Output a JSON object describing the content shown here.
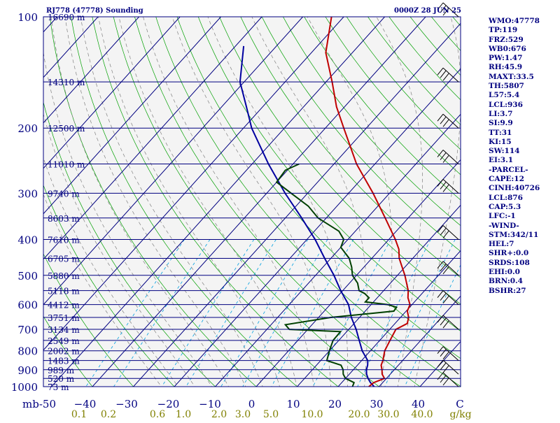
{
  "header": {
    "title": "RJ778 (47778) Sounding",
    "time": "0000Z 28 JUN 25"
  },
  "indices": [
    "WMO:47778",
    "TP:119",
    "FRZ:529",
    "WB0:676",
    "PW:1.47",
    "RH:45.9",
    "MAXT:33.5",
    "TH:5807",
    "L57:5.4",
    "LCL:936",
    "LI:3.7",
    "SI:9.9",
    "TT:31",
    "KI:15",
    "SW:114",
    "EI:3.1",
    "-PARCEL-",
    "CAPE:12",
    "CINH:40726",
    "LCL:876",
    "CAP:5.3",
    "LFC:-1",
    "-WIND-",
    "STM:342/11",
    "HEL:7",
    "SHR+:0.0",
    "SRDS:108",
    "EHI:0.0",
    "BRN:0.4",
    "BSHR:27"
  ],
  "colors": {
    "isobar": "#000080",
    "isotherm": "#000080",
    "dry_adiabat": "#00a000",
    "moist_adiabat": "#808080",
    "mixing_ratio": "#00a0e0",
    "temperature": "#c00000",
    "dewpoint": "#004000",
    "parcel": "#0000a0",
    "text": "#000080",
    "mixing_labels": "#808000",
    "background": "#f4f4f4"
  },
  "chart_data": {
    "type": "skew-t",
    "pressure_levels": [
      100,
      200,
      300,
      400,
      500,
      600,
      700,
      800,
      900,
      1000
    ],
    "height_labels": [
      {
        "p": 100,
        "text": "16690 m"
      },
      {
        "p": 150,
        "text": "14310 m"
      },
      {
        "p": 200,
        "text": "12500 m"
      },
      {
        "p": 250,
        "text": "11010 m"
      },
      {
        "p": 300,
        "text": "9740 m"
      },
      {
        "p": 350,
        "text": "8603 m"
      },
      {
        "p": 400,
        "text": "7610 m"
      },
      {
        "p": 450,
        "text": "6705 m"
      },
      {
        "p": 500,
        "text": "5880 m"
      },
      {
        "p": 550,
        "text": "5118 m"
      },
      {
        "p": 600,
        "text": "4412 m"
      },
      {
        "p": 650,
        "text": "3751 m"
      },
      {
        "p": 700,
        "text": "3134 m"
      },
      {
        "p": 750,
        "text": "2549 m"
      },
      {
        "p": 800,
        "text": "2002 m"
      },
      {
        "p": 850,
        "text": "1483 m"
      },
      {
        "p": 900,
        "text": "989 m"
      },
      {
        "p": 950,
        "text": "520 m"
      },
      {
        "p": 1000,
        "text": "73 m"
      }
    ],
    "temperature_ticks": [
      -50,
      -40,
      -30,
      -20,
      -10,
      0,
      10,
      20,
      30,
      40
    ],
    "temperature_tick_labels": [
      "mb-50",
      "−40",
      "−30",
      "−20",
      "−10",
      "0",
      "10",
      "20",
      "30",
      "40",
      "C"
    ],
    "mixing_ratio_labels": [
      "0.1",
      "0.2",
      "0.6",
      "1.0",
      "2.0",
      "3.0",
      "5.0",
      "10.0",
      "20.0",
      "30.0",
      "40.0",
      "g/kg"
    ],
    "mixing_ratios": [
      0.1,
      0.2,
      0.6,
      1.0,
      2.0,
      3.0,
      5.0,
      10.0,
      20.0,
      30.0,
      40.0
    ],
    "temperature_profile": [
      [
        1000,
        27.5
      ],
      [
        975,
        27.8
      ],
      [
        950,
        29.5
      ],
      [
        925,
        28.0
      ],
      [
        900,
        27.0
      ],
      [
        875,
        25.8
      ],
      [
        850,
        25.2
      ],
      [
        800,
        23.5
      ],
      [
        750,
        22.5
      ],
      [
        700,
        21.5
      ],
      [
        675,
        23.0
      ],
      [
        650,
        22.0
      ],
      [
        625,
        20.3
      ],
      [
        600,
        19.5
      ],
      [
        575,
        17.5
      ],
      [
        550,
        16.0
      ],
      [
        500,
        11.8
      ],
      [
        450,
        6.7
      ],
      [
        425,
        4.6
      ],
      [
        400,
        1.6
      ],
      [
        350,
        -5.6
      ],
      [
        300,
        -14.0
      ],
      [
        250,
        -24.5
      ],
      [
        200,
        -35.5
      ],
      [
        175,
        -42.0
      ],
      [
        150,
        -48.5
      ],
      [
        125,
        -56.5
      ],
      [
        100,
        -63.0
      ]
    ],
    "dewpoint_profile": [
      [
        1000,
        23.5
      ],
      [
        975,
        23.0
      ],
      [
        950,
        20.0
      ],
      [
        925,
        18.5
      ],
      [
        900,
        17.5
      ],
      [
        875,
        16.0
      ],
      [
        850,
        11.5
      ],
      [
        800,
        10.0
      ],
      [
        750,
        8.6
      ],
      [
        710,
        8.5
      ],
      [
        700,
        -4.5
      ],
      [
        680,
        -6.5
      ],
      [
        650,
        3.0
      ],
      [
        625,
        17.0
      ],
      [
        610,
        16.8
      ],
      [
        600,
        14.0
      ],
      [
        590,
        8.0
      ],
      [
        575,
        8.0
      ],
      [
        560,
        6.0
      ],
      [
        550,
        4.0
      ],
      [
        525,
        2.0
      ],
      [
        500,
        -1.0
      ],
      [
        475,
        -3.0
      ],
      [
        450,
        -5.5
      ],
      [
        420,
        -10.0
      ],
      [
        400,
        -11.0
      ],
      [
        380,
        -14.0
      ],
      [
        350,
        -22.0
      ],
      [
        325,
        -27.0
      ],
      [
        300,
        -34.0
      ],
      [
        280,
        -40.0
      ],
      [
        260,
        -40.5
      ],
      [
        250,
        -38.5
      ]
    ],
    "parcel_profile": [
      [
        1000,
        28.8
      ],
      [
        975,
        27.0
      ],
      [
        950,
        25.5
      ],
      [
        925,
        24.2
      ],
      [
        900,
        23.2
      ],
      [
        875,
        22.5
      ],
      [
        850,
        21.5
      ],
      [
        800,
        18.0
      ],
      [
        750,
        15.0
      ],
      [
        700,
        11.8
      ],
      [
        650,
        8.0
      ],
      [
        600,
        4.5
      ],
      [
        550,
        -0.5
      ],
      [
        500,
        -5.5
      ],
      [
        450,
        -11.5
      ],
      [
        400,
        -18.0
      ],
      [
        350,
        -26.0
      ],
      [
        300,
        -35.5
      ],
      [
        250,
        -46.0
      ],
      [
        200,
        -58.0
      ],
      [
        175,
        -64.0
      ],
      [
        150,
        -71.0
      ],
      [
        120,
        -78.0
      ]
    ],
    "wind_barb_levels": [
      100,
      150,
      200,
      250,
      300,
      400,
      500,
      600,
      700,
      850,
      925,
      1000
    ],
    "xlabel": "C",
    "ylabel": "mb"
  }
}
